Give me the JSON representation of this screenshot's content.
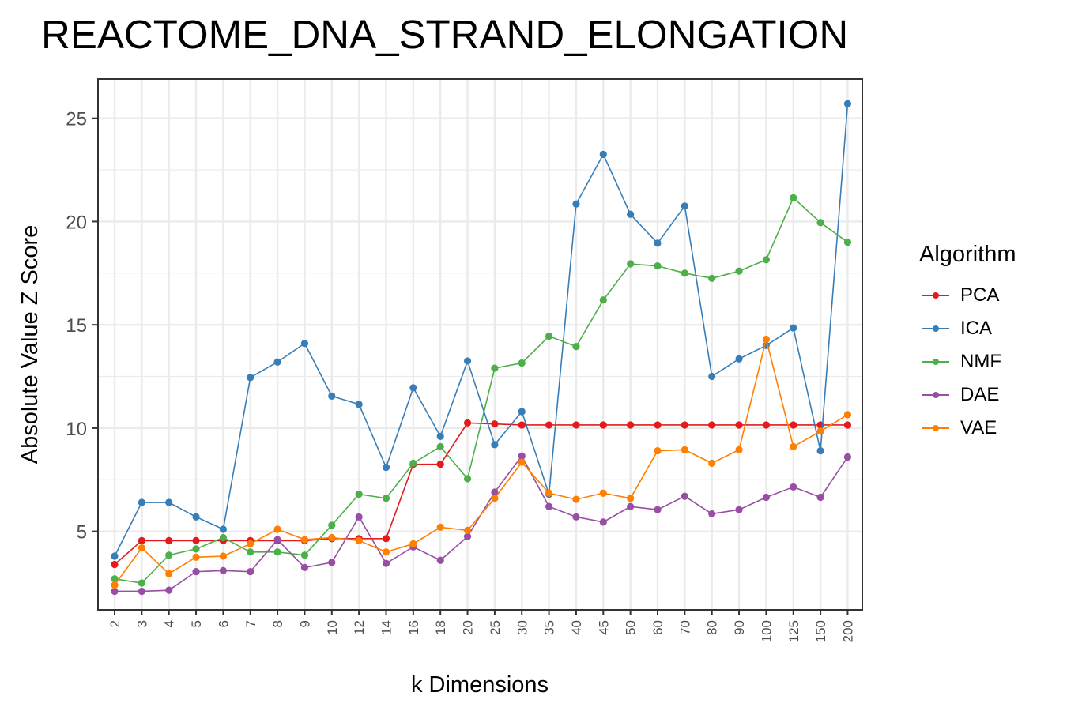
{
  "chart_data": {
    "type": "line",
    "title": "REACTOME_DNA_STRAND_ELONGATION",
    "xlabel": "k Dimensions",
    "ylabel": "Absolute Value Z Score",
    "categories": [
      "2",
      "3",
      "4",
      "5",
      "6",
      "7",
      "8",
      "9",
      "10",
      "12",
      "14",
      "16",
      "18",
      "20",
      "25",
      "30",
      "35",
      "40",
      "45",
      "50",
      "60",
      "70",
      "80",
      "90",
      "100",
      "125",
      "150",
      "200"
    ],
    "ylim": [
      1.2,
      26.9
    ],
    "yticks": [
      5,
      10,
      15,
      20,
      25
    ],
    "grid": true,
    "legend": {
      "title": "Algorithm",
      "position": "right"
    },
    "series": [
      {
        "name": "PCA",
        "color": "#E41A1C",
        "values": [
          3.4,
          4.55,
          4.55,
          4.55,
          4.55,
          4.55,
          4.55,
          4.55,
          4.65,
          4.65,
          4.65,
          8.25,
          8.25,
          10.25,
          10.2,
          10.15,
          10.15,
          10.15,
          10.15,
          10.15,
          10.15,
          10.15,
          10.15,
          10.15,
          10.15,
          10.15,
          10.15,
          10.15
        ]
      },
      {
        "name": "ICA",
        "color": "#377EB8",
        "values": [
          3.8,
          6.4,
          6.4,
          5.7,
          5.1,
          12.45,
          13.2,
          14.1,
          11.55,
          11.15,
          8.1,
          11.95,
          9.6,
          13.25,
          9.2,
          10.8,
          6.8,
          20.85,
          23.25,
          20.35,
          18.95,
          20.75,
          12.5,
          13.35,
          14.0,
          14.85,
          8.9,
          25.7
        ]
      },
      {
        "name": "NMF",
        "color": "#4DAF4A",
        "values": [
          2.7,
          2.5,
          3.85,
          4.15,
          4.7,
          4.0,
          4.0,
          3.85,
          5.3,
          6.8,
          6.6,
          8.3,
          9.1,
          7.55,
          12.9,
          13.15,
          14.45,
          13.95,
          16.2,
          17.95,
          17.85,
          17.5,
          17.25,
          17.6,
          18.15,
          21.15,
          19.95,
          19.0
        ]
      },
      {
        "name": "DAE",
        "color": "#984EA3",
        "values": [
          2.1,
          2.1,
          2.15,
          3.05,
          3.1,
          3.05,
          4.6,
          3.25,
          3.5,
          5.7,
          3.45,
          4.25,
          3.6,
          4.75,
          6.9,
          8.65,
          6.2,
          5.7,
          5.45,
          6.2,
          6.05,
          6.7,
          5.85,
          6.05,
          6.65,
          7.15,
          6.65,
          8.6
        ]
      },
      {
        "name": "VAE",
        "color": "#FF7F00",
        "values": [
          2.4,
          4.2,
          2.95,
          3.75,
          3.8,
          4.4,
          5.1,
          4.6,
          4.7,
          4.55,
          4.0,
          4.4,
          5.2,
          5.05,
          6.6,
          8.35,
          6.85,
          6.55,
          6.85,
          6.6,
          8.9,
          8.95,
          8.3,
          8.95,
          14.3,
          9.1,
          9.85,
          10.65
        ]
      }
    ]
  }
}
